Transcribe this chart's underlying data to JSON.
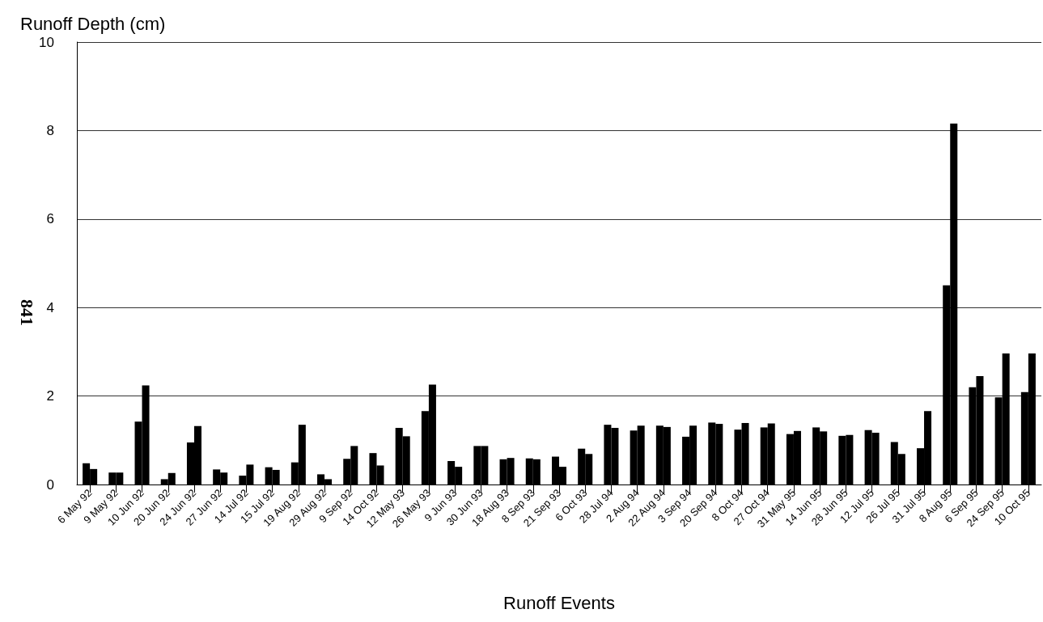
{
  "chart_data": {
    "type": "bar",
    "ylabel": "Runoff Depth (cm)",
    "xlabel": "Runoff Events",
    "annotations": [
      "841"
    ],
    "categories": [
      "6 May 92",
      "9 May 92",
      "10 Jun 92",
      "20 Jun 92",
      "24 Jun 92",
      "27 Jun 92",
      "14 Jul 92",
      "15 Jul 92",
      "19 Aug 92",
      "29 Aug 92",
      "9 Sep 92",
      "14 Oct 92",
      "12 May 93",
      "26 May 93",
      "9 Jun 93",
      "30 Jun 93",
      "18 Aug 93",
      "8 Sep 93",
      "21 Sep 93",
      "6 Oct 93",
      "28 Jul 94",
      "2 Aug 94",
      "22 Aug 94",
      "3 Sep 94",
      "20 Sep 94",
      "8 Oct 94",
      "27 Oct 94",
      "31 May 95",
      "14 Jun 95",
      "28 Jun 95",
      "12 Jul 95",
      "26 Jul 95",
      "31 Jul 95",
      "8 Aug 95",
      "6 Sep 95",
      "24 Sep 95",
      "10 Oct 95"
    ],
    "series": [
      {
        "color": "#000000",
        "values": [
          0.48,
          0.27,
          1.42,
          0.12,
          0.95,
          0.34,
          0.2,
          0.39,
          0.5,
          0.23,
          0.58,
          0.71,
          1.28,
          1.66,
          0.53,
          0.87,
          0.57,
          0.59,
          0.63,
          0.81,
          1.35,
          1.22,
          1.33,
          1.08,
          1.4,
          1.24,
          1.29,
          1.14,
          1.29,
          1.1,
          1.23,
          0.96,
          0.82,
          4.5,
          2.2,
          1.97,
          2.09
        ]
      },
      {
        "color": "#000000",
        "values": [
          0.35,
          0.27,
          2.24,
          0.26,
          1.32,
          0.27,
          0.45,
          0.33,
          1.35,
          0.12,
          0.87,
          0.43,
          1.09,
          2.26,
          0.4,
          0.87,
          0.6,
          0.57,
          0.4,
          0.69,
          1.28,
          1.33,
          1.3,
          1.33,
          1.37,
          1.39,
          1.38,
          1.21,
          1.2,
          1.12,
          1.17,
          0.69,
          1.66,
          8.16,
          2.45,
          2.96,
          2.96
        ]
      }
    ],
    "ylim": [
      0,
      10
    ],
    "yticks": [
      0,
      2,
      4,
      6,
      8,
      10
    ],
    "grid": "y"
  }
}
